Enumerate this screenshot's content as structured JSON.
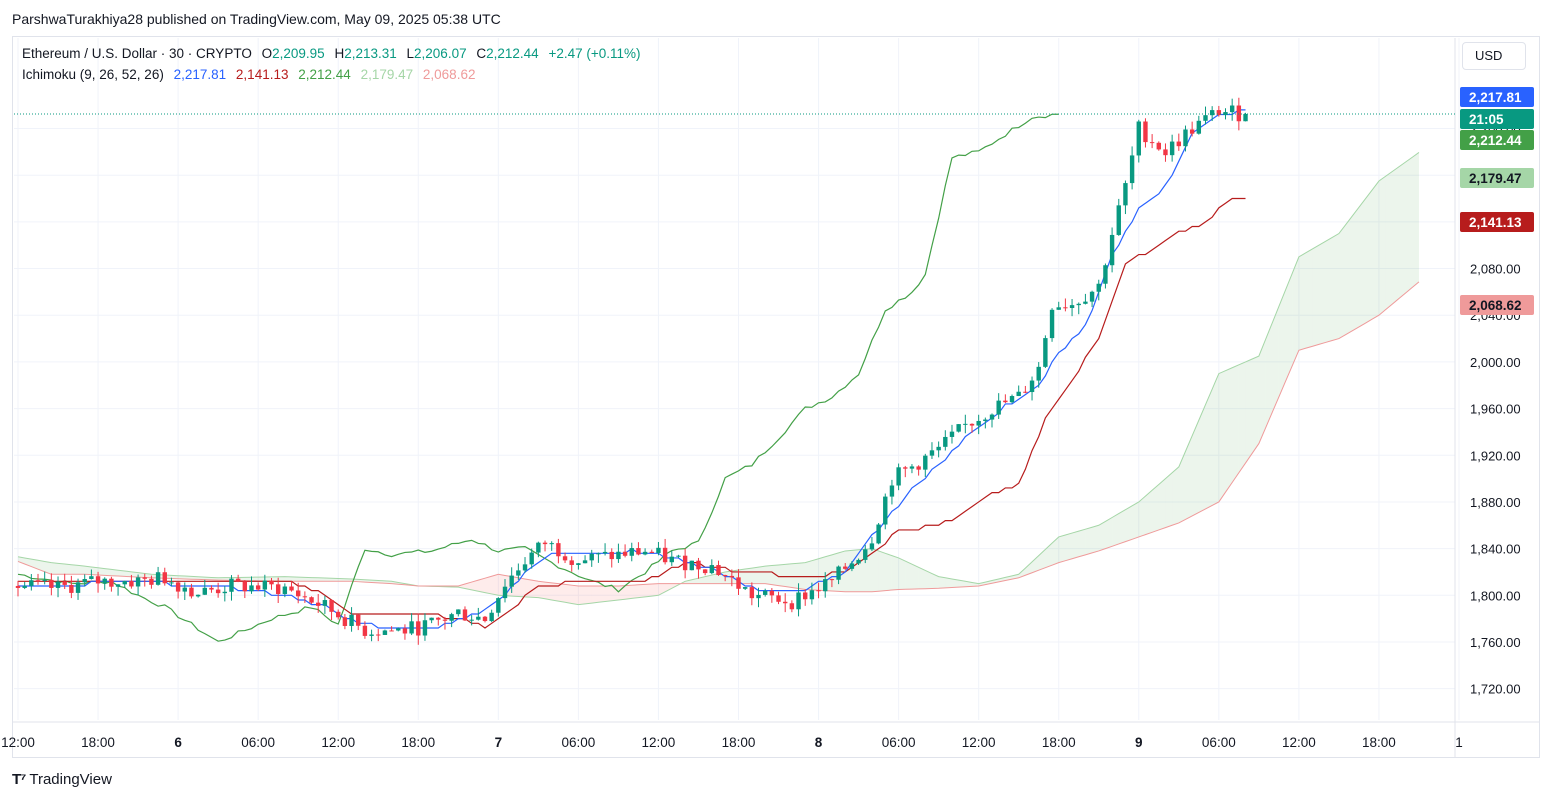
{
  "header": {
    "published": "ParshwaTurakhiya28 published on TradingView.com, May 09, 2025 05:38 UTC"
  },
  "legend": {
    "symbol": "Ethereum / U.S. Dollar · 30 · CRYPTO",
    "o_label": "O",
    "o_value": "2,209.95",
    "h_label": "H",
    "h_value": "2,213.31",
    "l_label": "L",
    "l_value": "2,206.07",
    "c_label": "C",
    "c_value": "2,212.44",
    "change": "+2.47 (+0.11%)",
    "indicator": "Ichimoku (9, 26, 52, 26)",
    "ind_values": [
      "2,217.81",
      "2,141.13",
      "2,212.44",
      "2,179.47",
      "2,068.62"
    ]
  },
  "currency_button": "USD",
  "footer": {
    "brand": "TradingView"
  },
  "colors": {
    "up": "#089981",
    "down": "#f23645",
    "conversion": "#2962ff",
    "base": "#b71c1c",
    "lagging": "#43a047",
    "lead_a": "#a5d6a7",
    "lead_b": "#ef9a9a",
    "cloud_bull": "rgba(67,160,71,0.10)",
    "cloud_bear": "rgba(244,67,54,0.10)"
  },
  "price_tags": [
    {
      "label": "2,217.81",
      "value": 2217.81,
      "color": "#2962ff",
      "text_color": "#ffffff"
    },
    {
      "label": "21:05",
      "value": 2212.44,
      "color": "#089981",
      "text_color": "#ffffff",
      "offset": -1
    },
    {
      "label": "2,212.44",
      "value": 2212.44,
      "color": "#43a047",
      "text_color": "#ffffff"
    },
    {
      "label": "2,179.47",
      "value": 2179.47,
      "color": "#a5d6a7",
      "text_color": "#131722"
    },
    {
      "label": "2,141.13",
      "value": 2141.13,
      "color": "#b71c1c",
      "text_color": "#ffffff"
    },
    {
      "label": "2,068.62",
      "value": 2068.62,
      "color": "#ef9a9a",
      "text_color": "#131722"
    }
  ],
  "chart_data": {
    "type": "candlestick",
    "title": "Ethereum / U.S. Dollar · 30 · CRYPTO",
    "ylim": [
      1700,
      2240
    ],
    "y_ticks": [
      {
        "v": 1720,
        "label": "1,720.00"
      },
      {
        "v": 1760,
        "label": "1,760.00"
      },
      {
        "v": 1800,
        "label": "1,800.00"
      },
      {
        "v": 1840,
        "label": "1,840.00"
      },
      {
        "v": 1880,
        "label": "1,880.00"
      },
      {
        "v": 1920,
        "label": "1,920.00"
      },
      {
        "v": 1960,
        "label": "1,960.00"
      },
      {
        "v": 2000,
        "label": "2,000.00"
      },
      {
        "v": 2040,
        "label": "2,040.00"
      },
      {
        "v": 2080,
        "label": "2,080.00"
      },
      {
        "v": 2120,
        "label": "2,120.00"
      },
      {
        "v": 2160,
        "label": "2,160.00"
      },
      {
        "v": 2200,
        "label": "2,200.00"
      }
    ],
    "x_ticks": [
      {
        "i": 0,
        "label": "12:00",
        "bold": false
      },
      {
        "i": 12,
        "label": "18:00",
        "bold": false
      },
      {
        "i": 24,
        "label": "6",
        "bold": true
      },
      {
        "i": 36,
        "label": "06:00",
        "bold": false
      },
      {
        "i": 48,
        "label": "12:00",
        "bold": false
      },
      {
        "i": 60,
        "label": "18:00",
        "bold": false
      },
      {
        "i": 72,
        "label": "7",
        "bold": true
      },
      {
        "i": 84,
        "label": "06:00",
        "bold": false
      },
      {
        "i": 96,
        "label": "12:00",
        "bold": false
      },
      {
        "i": 108,
        "label": "18:00",
        "bold": false
      },
      {
        "i": 120,
        "label": "8",
        "bold": true
      },
      {
        "i": 132,
        "label": "06:00",
        "bold": false
      },
      {
        "i": 144,
        "label": "12:00",
        "bold": false
      },
      {
        "i": 156,
        "label": "18:00",
        "bold": false
      },
      {
        "i": 168,
        "label": "9",
        "bold": true
      },
      {
        "i": 180,
        "label": "06:00",
        "bold": false
      },
      {
        "i": 192,
        "label": "12:00",
        "bold": false
      },
      {
        "i": 204,
        "label": "18:00",
        "bold": false
      },
      {
        "i": 216,
        "label": "1",
        "bold": false
      }
    ],
    "last_price": 2212.44,
    "close_anchors": [
      [
        0,
        1808
      ],
      [
        6,
        1806
      ],
      [
        12,
        1812
      ],
      [
        18,
        1812
      ],
      [
        22,
        1815
      ],
      [
        27,
        1802
      ],
      [
        32,
        1808
      ],
      [
        40,
        1806
      ],
      [
        46,
        1790
      ],
      [
        52,
        1770
      ],
      [
        58,
        1770
      ],
      [
        62,
        1775
      ],
      [
        66,
        1785
      ],
      [
        70,
        1780
      ],
      [
        73,
        1810
      ],
      [
        76,
        1830
      ],
      [
        79,
        1845
      ],
      [
        84,
        1830
      ],
      [
        88,
        1833
      ],
      [
        94,
        1838
      ],
      [
        98,
        1830
      ],
      [
        104,
        1825
      ],
      [
        110,
        1800
      ],
      [
        116,
        1795
      ],
      [
        122,
        1812
      ],
      [
        126,
        1835
      ],
      [
        128,
        1850
      ],
      [
        131,
        1900
      ],
      [
        134,
        1910
      ],
      [
        138,
        1925
      ],
      [
        142,
        1945
      ],
      [
        146,
        1960
      ],
      [
        150,
        1970
      ],
      [
        153,
        1995
      ],
      [
        155,
        2050
      ],
      [
        158,
        2050
      ],
      [
        162,
        2065
      ],
      [
        164,
        2110
      ],
      [
        166,
        2150
      ],
      [
        168,
        2200
      ],
      [
        172,
        2180
      ],
      [
        176,
        2200
      ],
      [
        180,
        2215
      ],
      [
        184,
        2212
      ]
    ],
    "conversion_anchors": [
      [
        0,
        1807
      ],
      [
        8,
        1808
      ],
      [
        14,
        1812
      ],
      [
        22,
        1810
      ],
      [
        30,
        1808
      ],
      [
        40,
        1800
      ],
      [
        46,
        1790
      ],
      [
        50,
        1778
      ],
      [
        56,
        1770
      ],
      [
        62,
        1772
      ],
      [
        68,
        1782
      ],
      [
        72,
        1795
      ],
      [
        76,
        1820
      ],
      [
        80,
        1835
      ],
      [
        86,
        1836
      ],
      [
        92,
        1838
      ],
      [
        98,
        1832
      ],
      [
        104,
        1822
      ],
      [
        112,
        1802
      ],
      [
        118,
        1805
      ],
      [
        124,
        1820
      ],
      [
        130,
        1865
      ],
      [
        134,
        1890
      ],
      [
        138,
        1912
      ],
      [
        142,
        1935
      ],
      [
        148,
        1962
      ],
      [
        153,
        1978
      ],
      [
        156,
        2008
      ],
      [
        160,
        2030
      ],
      [
        164,
        2090
      ],
      [
        168,
        2130
      ],
      [
        172,
        2150
      ],
      [
        176,
        2195
      ],
      [
        180,
        2210
      ],
      [
        184,
        2217.81
      ]
    ],
    "base_anchors": [
      [
        0,
        1812
      ],
      [
        10,
        1812
      ],
      [
        20,
        1812
      ],
      [
        30,
        1812
      ],
      [
        40,
        1812
      ],
      [
        46,
        1800
      ],
      [
        50,
        1785
      ],
      [
        60,
        1785
      ],
      [
        66,
        1780
      ],
      [
        70,
        1772
      ],
      [
        74,
        1788
      ],
      [
        78,
        1808
      ],
      [
        86,
        1812
      ],
      [
        94,
        1812
      ],
      [
        100,
        1828
      ],
      [
        106,
        1822
      ],
      [
        110,
        1820
      ],
      [
        118,
        1815
      ],
      [
        124,
        1820
      ],
      [
        128,
        1835
      ],
      [
        132,
        1855
      ],
      [
        138,
        1860
      ],
      [
        142,
        1870
      ],
      [
        146,
        1888
      ],
      [
        150,
        1895
      ],
      [
        154,
        1950
      ],
      [
        158,
        1985
      ],
      [
        162,
        2020
      ],
      [
        166,
        2085
      ],
      [
        170,
        2095
      ],
      [
        174,
        2110
      ],
      [
        178,
        2120
      ],
      [
        182,
        2141.13
      ],
      [
        184,
        2141.13
      ]
    ],
    "lagging_anchors": [
      [
        0,
        1818
      ],
      [
        8,
        1810
      ],
      [
        14,
        1812
      ],
      [
        18,
        1800
      ],
      [
        22,
        1790
      ],
      [
        26,
        1775
      ],
      [
        30,
        1760
      ],
      [
        34,
        1770
      ],
      [
        38,
        1780
      ],
      [
        44,
        1790
      ],
      [
        48,
        1775
      ],
      [
        52,
        1840
      ],
      [
        56,
        1835
      ],
      [
        62,
        1838
      ],
      [
        68,
        1848
      ],
      [
        72,
        1838
      ],
      [
        76,
        1840
      ],
      [
        80,
        1828
      ],
      [
        86,
        1812
      ],
      [
        90,
        1805
      ],
      [
        94,
        1820
      ],
      [
        98,
        1838
      ],
      [
        102,
        1845
      ],
      [
        106,
        1900
      ],
      [
        110,
        1912
      ],
      [
        114,
        1935
      ],
      [
        118,
        1960
      ],
      [
        122,
        1970
      ],
      [
        126,
        1990
      ],
      [
        130,
        2045
      ],
      [
        134,
        2060
      ],
      [
        136,
        2075
      ],
      [
        140,
        2175
      ],
      [
        144,
        2180
      ],
      [
        148,
        2195
      ],
      [
        152,
        2210
      ],
      [
        156,
        2212.44
      ]
    ],
    "cloud_anchors": [
      [
        0,
        1833,
        1829
      ],
      [
        5,
        1828,
        1818
      ],
      [
        10,
        1825,
        1818
      ],
      [
        20,
        1818,
        1815
      ],
      [
        30,
        1815,
        1813
      ],
      [
        40,
        1816,
        1812
      ],
      [
        50,
        1814,
        1812
      ],
      [
        56,
        1812,
        1810
      ],
      [
        60,
        1808,
        1808
      ],
      [
        66,
        1807,
        1808
      ],
      [
        72,
        1800,
        1818
      ],
      [
        78,
        1798,
        1812
      ],
      [
        84,
        1792,
        1808
      ],
      [
        90,
        1796,
        1808
      ],
      [
        96,
        1800,
        1810
      ],
      [
        100,
        1812,
        1810
      ],
      [
        106,
        1820,
        1810
      ],
      [
        112,
        1825,
        1810
      ],
      [
        118,
        1828,
        1805
      ],
      [
        124,
        1838,
        1803
      ],
      [
        128,
        1840,
        1803
      ],
      [
        132,
        1832,
        1805
      ],
      [
        138,
        1816,
        1806
      ],
      [
        144,
        1810,
        1808
      ],
      [
        150,
        1818,
        1815
      ],
      [
        156,
        1850,
        1828
      ],
      [
        162,
        1860,
        1838
      ],
      [
        168,
        1880,
        1850
      ],
      [
        174,
        1910,
        1862
      ],
      [
        180,
        1990,
        1880
      ],
      [
        186,
        2005,
        1930
      ],
      [
        192,
        2090,
        2010
      ],
      [
        198,
        2110,
        2020
      ],
      [
        204,
        2155,
        2040
      ],
      [
        210,
        2179.47,
        2068.62
      ]
    ]
  }
}
